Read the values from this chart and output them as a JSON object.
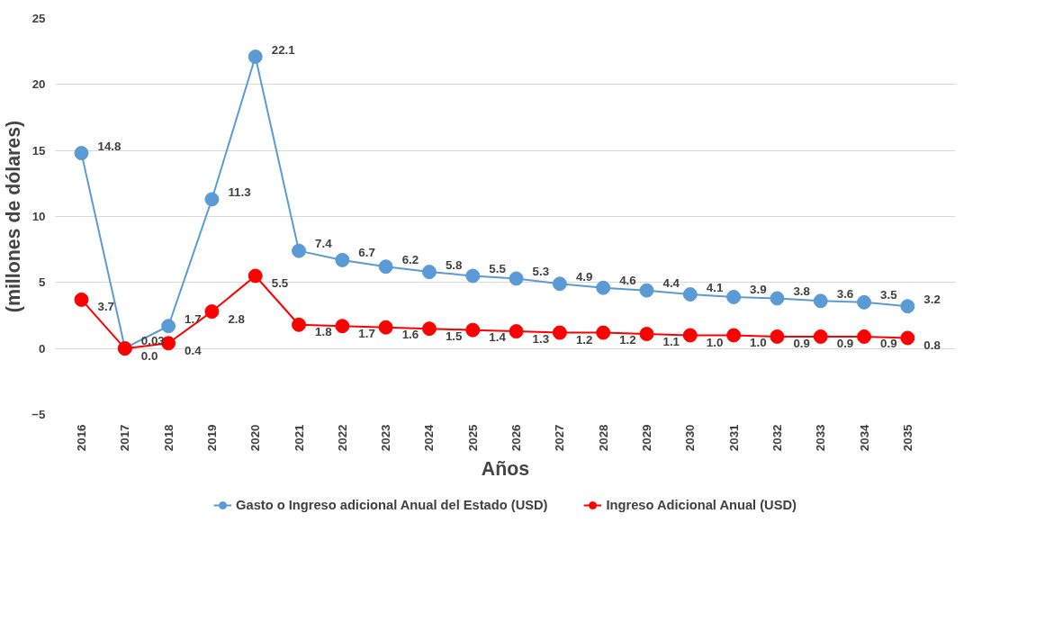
{
  "chart_data": {
    "type": "line",
    "xlabel": "Años",
    "ylabel": "(millones de dólares)",
    "categories": [
      "2016",
      "2017",
      "2018",
      "2019",
      "2020",
      "2021",
      "2022",
      "2023",
      "2024",
      "2025",
      "2026",
      "2027",
      "2028",
      "2029",
      "2030",
      "2031",
      "2032",
      "2033",
      "2034",
      "2035"
    ],
    "series": [
      {
        "name": "Gasto o Ingreso adicional Anual del Estado (USD)",
        "color": "#5b9bd5",
        "values": [
          14.8,
          0.03,
          1.7,
          11.3,
          22.1,
          7.4,
          6.7,
          6.2,
          5.8,
          5.5,
          5.3,
          4.9,
          4.6,
          4.4,
          4.1,
          3.9,
          3.8,
          3.6,
          3.5,
          3.2
        ]
      },
      {
        "name": "Ingreso Adicional Anual (USD)",
        "color": "#ff0000",
        "values": [
          3.7,
          0.0,
          0.4,
          2.8,
          5.5,
          1.8,
          1.7,
          1.6,
          1.5,
          1.4,
          1.3,
          1.2,
          1.2,
          1.1,
          1.0,
          1.0,
          0.9,
          0.9,
          0.9,
          0.8
        ],
        "value_labels": [
          "3.7",
          "0.0",
          "0.4",
          "2.8",
          "5.5",
          "1.8",
          "1.7",
          "1.6",
          "1.5",
          "1.4",
          "1.3",
          "1.2",
          "1.2",
          "1.1",
          "1.0",
          "1.0",
          "0.9",
          "0.9",
          "0.9",
          "0.8"
        ]
      }
    ],
    "data_labels": true,
    "ylim": [
      -5,
      25
    ],
    "yticks": [
      -5,
      0,
      5,
      10,
      15,
      20,
      25
    ],
    "grid": "y",
    "legend": "bottom",
    "marker": "circle",
    "line_style": "solid"
  }
}
